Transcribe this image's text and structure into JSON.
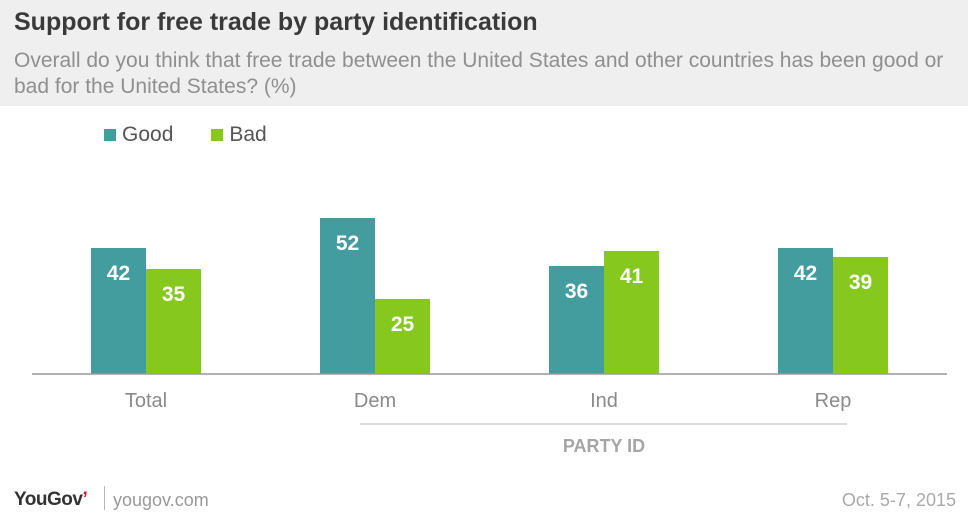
{
  "header": {
    "title": "Support for free trade by party identification",
    "subtitle": "Overall do you think that free trade between the United States and other countries has been good or bad for the United States? (%)"
  },
  "legend": [
    {
      "label": "Good",
      "color": "#439d9f"
    },
    {
      "label": "Bad",
      "color": "#86c81e"
    }
  ],
  "chart_data": {
    "type": "bar",
    "title": "Support for free trade by party identification",
    "categories": [
      "Total",
      "Dem",
      "Ind",
      "Rep"
    ],
    "series": [
      {
        "name": "Good",
        "color": "#439d9f",
        "values": [
          42,
          52,
          36,
          42
        ]
      },
      {
        "name": "Bad",
        "color": "#86c81e",
        "values": [
          35,
          25,
          41,
          39
        ]
      }
    ],
    "group_label": "PARTY ID",
    "ylim": [
      0,
      60
    ],
    "grid": false,
    "legend_position": "top-left"
  },
  "footer": {
    "logo_main": "YouGov",
    "logo_accent": "’",
    "url": "yougov.com",
    "date": "Oct. 5-7, 2015"
  }
}
